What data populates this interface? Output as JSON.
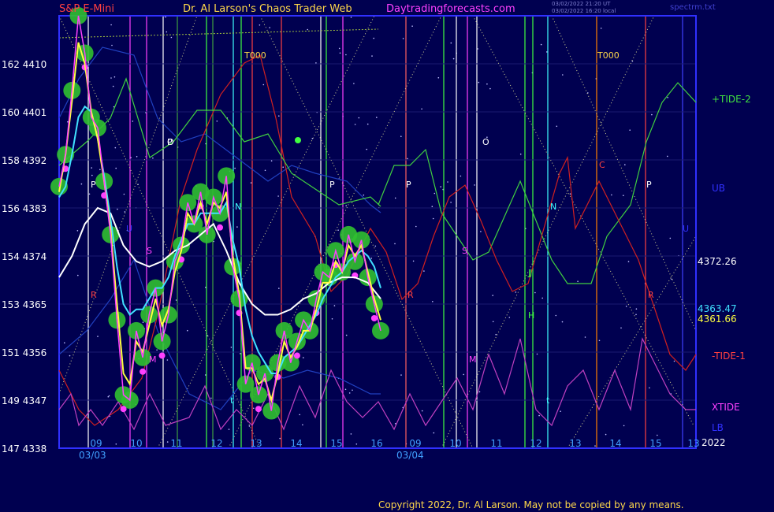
{
  "header": {
    "left": "S&P E-Mini",
    "title": "Dr. Al Larson's Chaos Trader Web",
    "site": "Daytradingforecasts.com",
    "ts1": "03/02/2022 21:20 UT",
    "ts2": "03/02/2022 16:20 local",
    "file": "spectrm.txt"
  },
  "footer": {
    "copyright": "Copyright 2022, Dr. Al Larson. May not be copied by any means."
  },
  "chart_data": {
    "type": "line",
    "title": "S&P E-Mini",
    "y_left_labels": [
      {
        "secondary": "162",
        "price": 4410
      },
      {
        "secondary": "160",
        "price": 4401
      },
      {
        "secondary": "158",
        "price": 4392
      },
      {
        "secondary": "156",
        "price": 4383
      },
      {
        "secondary": "154",
        "price": 4374
      },
      {
        "secondary": "153",
        "price": 4365
      },
      {
        "secondary": "151",
        "price": 4356
      },
      {
        "secondary": "149",
        "price": 4347
      },
      {
        "secondary": "147",
        "price": 4338
      }
    ],
    "ylim": [
      4338,
      4419
    ],
    "x_ticks": [
      "09",
      "10",
      "11",
      "12",
      "13",
      "14",
      "15",
      "16",
      "09",
      "10",
      "11",
      "12",
      "13",
      "14",
      "15",
      "13"
    ],
    "x_dates": [
      "03/03",
      "03/04"
    ],
    "year": "2022",
    "series_labels": [
      "+TIDE-2",
      "UB",
      "-TIDE-1",
      "XTIDE",
      "LB"
    ],
    "price_labels": [
      "4372.26",
      "4363.47",
      "4361.66"
    ],
    "annotations": [
      "T000",
      "T000",
      "P",
      "P",
      "P",
      "P",
      "P",
      "O",
      "O",
      "R",
      "R",
      "R",
      "S",
      "S",
      "M",
      "M",
      "N",
      "N",
      "C",
      "U",
      "J",
      "J",
      "H",
      "U",
      "t",
      "t"
    ],
    "price_series": {
      "name": "S&P E-Mini",
      "x": [
        0,
        2,
        4,
        6,
        8,
        10,
        12,
        14,
        16,
        18,
        20,
        22,
        24,
        26,
        28,
        30,
        32,
        34,
        36,
        38,
        40,
        42,
        44,
        46,
        48,
        50,
        52,
        54,
        56,
        58,
        60,
        62,
        64,
        66,
        68,
        70,
        72,
        74,
        76,
        78,
        80,
        82,
        84,
        86,
        88,
        90,
        92,
        94,
        96,
        98,
        100
      ],
      "y": [
        4387,
        4393,
        4405,
        4419,
        4412,
        4400,
        4398,
        4388,
        4378,
        4362,
        4348,
        4347,
        4360,
        4355,
        4363,
        4368,
        4358,
        4363,
        4373,
        4376,
        4384,
        4380,
        4386,
        4378,
        4385,
        4382,
        4389,
        4372,
        4366,
        4350,
        4354,
        4348,
        4352,
        4345,
        4354,
        4360,
        4354,
        4358,
        4362,
        4360,
        4366,
        4371,
        4370,
        4375,
        4371,
        4378,
        4373,
        4377,
        4370,
        4365,
        4360
      ]
    },
    "yellow_series": {
      "x": [
        0,
        2,
        4,
        6,
        8,
        10,
        12,
        14,
        16,
        18,
        20,
        22,
        24,
        26,
        28,
        30,
        32,
        34,
        36,
        38,
        40,
        42,
        44,
        46,
        48,
        50,
        52,
        54,
        56,
        58,
        60,
        62,
        64,
        66,
        68,
        70,
        72,
        74,
        76,
        78,
        80,
        82,
        84,
        86,
        88,
        90,
        92,
        94,
        96,
        98,
        100
      ],
      "y": [
        4386,
        4393,
        4403,
        4414,
        4410,
        4401,
        4396,
        4388,
        4379,
        4365,
        4352,
        4350,
        4358,
        4356,
        4361,
        4366,
        4361,
        4364,
        4371,
        4375,
        4382,
        4380,
        4384,
        4380,
        4384,
        4383,
        4386,
        4374,
        4367,
        4353,
        4353,
        4350,
        4351,
        4347,
        4352,
        4358,
        4355,
        4357,
        4360,
        4360,
        4364,
        4369,
        4369,
        4373,
        4371,
        4376,
        4374,
        4376,
        4371,
        4366,
        4362
      ]
    },
    "cyan_series": {
      "x": [
        0,
        2,
        4,
        6,
        8,
        10,
        12,
        14,
        16,
        18,
        20,
        22,
        24,
        26,
        28,
        30,
        32,
        34,
        36,
        38,
        40,
        42,
        44,
        46,
        48,
        50,
        52,
        54,
        56,
        58,
        60,
        62,
        64,
        66,
        68,
        70,
        72,
        74,
        76,
        78,
        80,
        82,
        84,
        86,
        88,
        90,
        92,
        94,
        96,
        98,
        100
      ],
      "y": [
        4385,
        4387,
        4393,
        4400,
        4402,
        4401,
        4396,
        4389,
        4381,
        4372,
        4365,
        4363,
        4364,
        4364,
        4366,
        4368,
        4368,
        4370,
        4374,
        4377,
        4380,
        4380,
        4382,
        4382,
        4382,
        4382,
        4384,
        4377,
        4372,
        4364,
        4359,
        4356,
        4354,
        4352,
        4352,
        4355,
        4356,
        4357,
        4359,
        4361,
        4363,
        4366,
        4368,
        4370,
        4371,
        4373,
        4374,
        4375,
        4374,
        4372,
        4368
      ]
    },
    "white_series": {
      "x": [
        0,
        4,
        8,
        12,
        16,
        20,
        24,
        28,
        32,
        36,
        40,
        44,
        48,
        52,
        56,
        60,
        64,
        68,
        72,
        76,
        80,
        84,
        88,
        92,
        96,
        100
      ],
      "y": [
        4370,
        4374,
        4380,
        4383,
        4382,
        4376,
        4373,
        4372,
        4373,
        4375,
        4376,
        4378,
        4380,
        4375,
        4369,
        4365,
        4363,
        4363,
        4364,
        4366,
        4367,
        4369,
        4370,
        4370,
        4369,
        4366
      ]
    }
  }
}
